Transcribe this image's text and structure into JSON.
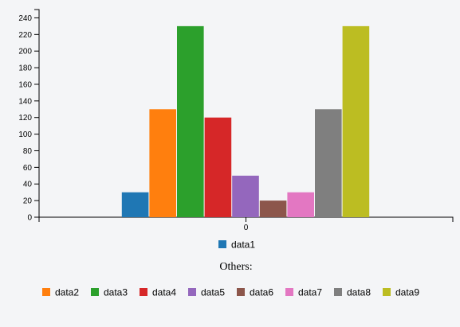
{
  "chart_data": {
    "type": "bar",
    "categories": [
      "0"
    ],
    "ylim": [
      0,
      250
    ],
    "yticks": [
      0,
      20,
      40,
      60,
      80,
      100,
      120,
      140,
      160,
      180,
      200,
      220,
      240
    ],
    "series": [
      {
        "name": "data1",
        "values": [
          30
        ],
        "color": "#1f77b4"
      },
      {
        "name": "data2",
        "values": [
          130
        ],
        "color": "#ff7f0e"
      },
      {
        "name": "data3",
        "values": [
          230
        ],
        "color": "#2ca02c"
      },
      {
        "name": "data4",
        "values": [
          120
        ],
        "color": "#d62728"
      },
      {
        "name": "data5",
        "values": [
          50
        ],
        "color": "#9467bd"
      },
      {
        "name": "data6",
        "values": [
          20
        ],
        "color": "#8c564b"
      },
      {
        "name": "data7",
        "values": [
          30
        ],
        "color": "#e377c2"
      },
      {
        "name": "data8",
        "values": [
          130
        ],
        "color": "#7f7f7f"
      },
      {
        "name": "data9",
        "values": [
          230
        ],
        "color": "#bcbd22"
      }
    ],
    "legend": {
      "placement": "bottom",
      "primary": [
        "data1"
      ],
      "group_title": "Others:",
      "group": [
        "data2",
        "data3",
        "data4",
        "data5",
        "data6",
        "data7",
        "data8",
        "data9"
      ]
    }
  }
}
